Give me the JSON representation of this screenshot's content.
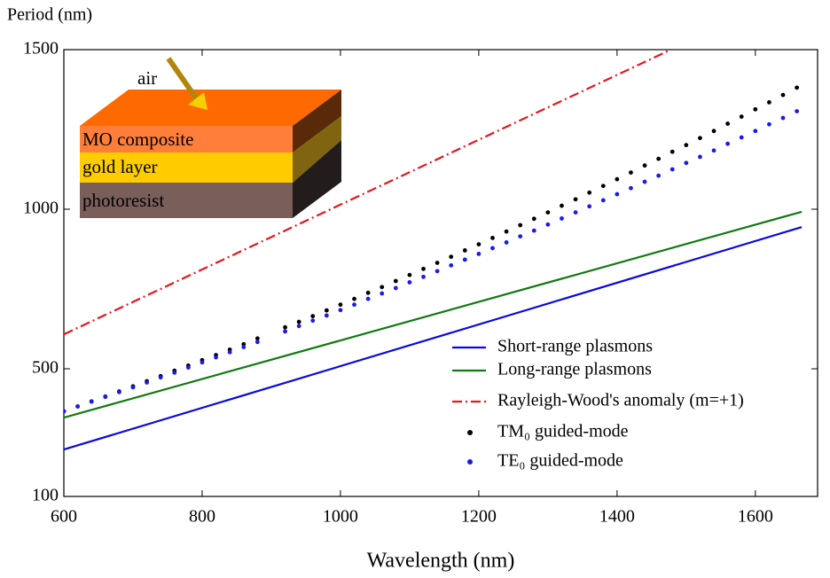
{
  "chart_data": {
    "type": "line",
    "y_label": "Period (nm)",
    "x_label": "Wavelength (nm)",
    "xlim": [
      600,
      1690
    ],
    "ylim": [
      100,
      1500
    ],
    "xticks": [
      600,
      800,
      1000,
      1200,
      1400,
      1600
    ],
    "yticks": [
      100,
      500,
      1000,
      1500
    ],
    "series": [
      {
        "name": "Short-range plasmons",
        "type": "line",
        "style": "solid",
        "color": "#0a0adc",
        "x": [
          600,
          1667
        ],
        "values": [
          247,
          944
        ]
      },
      {
        "name": "Long-range plasmons",
        "type": "line",
        "style": "solid",
        "color": "#107a10",
        "x": [
          600,
          1667
        ],
        "values": [
          347,
          992
        ]
      },
      {
        "name": "Rayleigh-Wood's anomaly (m=+1)",
        "type": "line",
        "style": "dashdot",
        "color": "#e8141e",
        "x": [
          600,
          1478
        ],
        "values": [
          608,
          1500
        ]
      },
      {
        "name": "TM₀ guided-mode",
        "type": "scatter",
        "color": "#000000",
        "x": [
          600,
          620,
          640,
          660,
          680,
          700,
          720,
          740,
          760,
          780,
          800,
          820,
          840,
          860,
          880,
          920,
          940,
          960,
          980,
          1000,
          1020,
          1040,
          1060,
          1080,
          1100,
          1120,
          1140,
          1160,
          1180,
          1200,
          1220,
          1240,
          1260,
          1280,
          1300,
          1320,
          1340,
          1360,
          1380,
          1400,
          1420,
          1440,
          1460,
          1480,
          1500,
          1520,
          1540,
          1560,
          1580,
          1600,
          1620,
          1640,
          1660
        ],
        "values": [
          367,
          382,
          398,
          413,
          429,
          445,
          461,
          477,
          494,
          510,
          527,
          543,
          560,
          577,
          595,
          630,
          647,
          665,
          683,
          701,
          719,
          738,
          756,
          775,
          794,
          813,
          832,
          851,
          871,
          890,
          910,
          930,
          950,
          970,
          990,
          1011,
          1031,
          1052,
          1073,
          1094,
          1115,
          1137,
          1158,
          1180,
          1201,
          1223,
          1245,
          1268,
          1290,
          1313,
          1335,
          1358,
          1381
        ]
      },
      {
        "name": "TE₀ guided-mode",
        "type": "scatter",
        "color": "#1a1af0",
        "x": [
          600,
          620,
          640,
          660,
          680,
          700,
          720,
          740,
          760,
          780,
          800,
          820,
          840,
          860,
          880,
          920,
          940,
          960,
          980,
          1000,
          1020,
          1040,
          1060,
          1080,
          1100,
          1120,
          1140,
          1160,
          1180,
          1200,
          1220,
          1240,
          1260,
          1280,
          1300,
          1320,
          1340,
          1360,
          1380,
          1400,
          1420,
          1440,
          1460,
          1480,
          1500,
          1520,
          1540,
          1560,
          1580,
          1600,
          1620,
          1640,
          1660
        ],
        "values": [
          367,
          382,
          397,
          412,
          427,
          442,
          457,
          473,
          488,
          504,
          520,
          536,
          552,
          568,
          584,
          617,
          634,
          651,
          667,
          684,
          701,
          719,
          736,
          753,
          771,
          788,
          806,
          824,
          842,
          860,
          878,
          896,
          915,
          933,
          952,
          971,
          990,
          1009,
          1028,
          1047,
          1066,
          1086,
          1105,
          1125,
          1145,
          1164,
          1184,
          1205,
          1225,
          1245,
          1266,
          1286,
          1307
        ]
      }
    ],
    "inset": {
      "incident": "air",
      "layers": [
        "MO composite",
        "gold layer",
        "photoresist"
      ]
    }
  }
}
